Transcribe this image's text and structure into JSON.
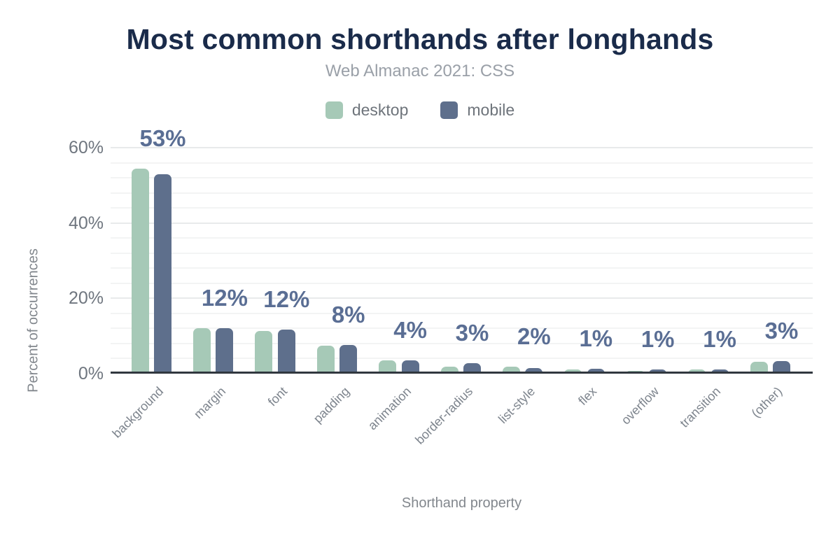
{
  "chart_data": {
    "type": "bar",
    "title": "Most common shorthands after longhands",
    "subtitle": "Web Almanac 2021: CSS",
    "xlabel": "Shorthand property",
    "ylabel": "Percent of occurrences",
    "categories": [
      "background",
      "margin",
      "font",
      "padding",
      "animation",
      "border-radius",
      "list-style",
      "flex",
      "overflow",
      "transition",
      "(other)"
    ],
    "series": [
      {
        "name": "desktop",
        "color": "#a6c9b7",
        "values": [
          54.5,
          12.0,
          11.4,
          7.5,
          3.5,
          1.8,
          1.9,
          1.1,
          0.8,
          1.1,
          3.2
        ]
      },
      {
        "name": "mobile",
        "color": "#5e6f8c",
        "values": [
          53.0,
          12.1,
          11.7,
          7.6,
          3.6,
          2.7,
          1.5,
          1.3,
          1.2,
          1.1,
          3.4
        ]
      }
    ],
    "value_labels": [
      "53%",
      "12%",
      "12%",
      "8%",
      "4%",
      "3%",
      "2%",
      "1%",
      "1%",
      "1%",
      "3%"
    ],
    "yticks": [
      {
        "pct": 0,
        "label": "0%"
      },
      {
        "pct": 20,
        "label": "20%"
      },
      {
        "pct": 40,
        "label": "40%"
      },
      {
        "pct": 60,
        "label": "60%"
      }
    ],
    "ylim": [
      0,
      60
    ],
    "grid": {
      "on": true,
      "minor_step": 4,
      "major_step": 20
    },
    "legend_position": "top",
    "colors": {
      "title": "#1a2b4a",
      "subtitle": "#9aa0a8",
      "legend_text": "#6e747b",
      "tick_text": "#6f767f",
      "category_text": "#7d848d",
      "axis_title_text": "#82878d",
      "value_label": "#5a6e94",
      "axis_line": "#31383f",
      "grid_minor": "#f3f4f4",
      "grid_major": "#e8eaeb",
      "background": "#ffffff"
    }
  }
}
